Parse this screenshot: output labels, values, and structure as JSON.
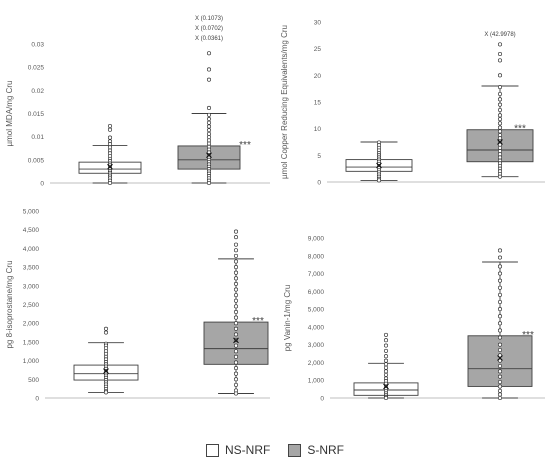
{
  "colors": {
    "ns_fill": "#ffffff",
    "s_fill": "#a6a6a6",
    "stroke": "#404040",
    "axis": "#bfbfbf"
  },
  "legend": {
    "ns_label": "NS-NRF",
    "s_label": "S-NRF"
  },
  "chart_data": [
    {
      "type": "boxplot",
      "ylabel": "µmol MDA/mg Cru",
      "ylim": [
        0,
        0.03
      ],
      "ticks": [
        "0",
        "0.005",
        "0.01",
        "0.015",
        "0.02",
        "0.025",
        "0.03"
      ],
      "tick_values": [
        0,
        0.005,
        0.01,
        0.015,
        0.02,
        0.025,
        0.03
      ],
      "significance": "***",
      "outlier_labels": [
        "X (0.1073)",
        "X (0.0702)",
        "X (0.0361)"
      ],
      "series": [
        {
          "name": "NS-NRF",
          "min": 0.0,
          "q1": 0.0021,
          "median": 0.003,
          "q3": 0.0045,
          "max": 0.0081,
          "mean": 0.0035,
          "points": [
            0.0123,
            0.0115,
            0.0098,
            0.009,
            0.0084,
            0.0077,
            0.007,
            0.0064,
            0.0058,
            0.0052,
            0.0047,
            0.0042,
            0.0038,
            0.0034,
            0.003,
            0.0026,
            0.0022,
            0.0018,
            0.0014,
            0.001,
            0.0005,
            0.0
          ]
        },
        {
          "name": "S-NRF",
          "min": 0.0,
          "q1": 0.003,
          "median": 0.005,
          "q3": 0.008,
          "max": 0.015,
          "mean": 0.006,
          "points": [
            0.028,
            0.0245,
            0.0223,
            0.0162,
            0.0147,
            0.0138,
            0.013,
            0.0122,
            0.0114,
            0.0106,
            0.0099,
            0.0092,
            0.0085,
            0.0078,
            0.0072,
            0.0066,
            0.006,
            0.0055,
            0.005,
            0.0045,
            0.004,
            0.0035,
            0.003,
            0.0025,
            0.002,
            0.0015,
            0.001,
            0.0005,
            0.0
          ]
        }
      ]
    },
    {
      "type": "boxplot",
      "ylabel": "µmol Copper Reducing Equivalents/mg Cru",
      "ylim": [
        0,
        30
      ],
      "ticks": [
        "0",
        "5",
        "10",
        "15",
        "20",
        "25",
        "30"
      ],
      "tick_values": [
        0,
        5,
        10,
        15,
        20,
        25,
        30
      ],
      "significance": "***",
      "outlier_labels": [
        "X (42.9978)"
      ],
      "series": [
        {
          "name": "NS-NRF",
          "min": 0.3,
          "q1": 2.0,
          "median": 2.8,
          "q3": 4.2,
          "max": 7.5,
          "mean": 3.1,
          "points": [
            7.4,
            6.9,
            6.4,
            5.9,
            5.4,
            5.0,
            4.6,
            4.2,
            3.8,
            3.4,
            3.0,
            2.6,
            2.2,
            1.8,
            1.4,
            1.0,
            0.6,
            0.3
          ]
        },
        {
          "name": "S-NRF",
          "min": 1.0,
          "q1": 3.8,
          "median": 6.0,
          "q3": 9.8,
          "max": 18.0,
          "mean": 7.5,
          "points": [
            25.8,
            24.0,
            22.8,
            20.0,
            17.8,
            16.5,
            15.5,
            14.5,
            13.5,
            12.5,
            11.8,
            11.0,
            10.2,
            9.5,
            8.8,
            8.2,
            7.6,
            7.0,
            6.4,
            5.8,
            5.2,
            4.6,
            4.0,
            3.5,
            3.0,
            2.5,
            2.0,
            1.5,
            1.0
          ]
        }
      ]
    },
    {
      "type": "boxplot",
      "ylabel": "pg 8-isoprostane/mg Cru",
      "ylim": [
        0,
        5000
      ],
      "ticks": [
        "0",
        "500",
        "1,000",
        "1,500",
        "2,000",
        "2,500",
        "3,000",
        "3,500",
        "4,000",
        "4,500",
        "5,000"
      ],
      "tick_values": [
        0,
        500,
        1000,
        1500,
        2000,
        2500,
        3000,
        3500,
        4000,
        4500,
        5000
      ],
      "significance": "***",
      "outlier_labels": [],
      "series": [
        {
          "name": "NS-NRF",
          "min": 150,
          "q1": 480,
          "median": 650,
          "q3": 880,
          "max": 1480,
          "mean": 720,
          "points": [
            1850,
            1750,
            1450,
            1400,
            1330,
            1250,
            1180,
            1100,
            1030,
            960,
            900,
            840,
            780,
            720,
            660,
            600,
            540,
            480,
            420,
            360,
            300,
            240,
            180,
            150
          ]
        },
        {
          "name": "S-NRF",
          "min": 120,
          "q1": 900,
          "median": 1320,
          "q3": 2030,
          "max": 3720,
          "mean": 1540,
          "points": [
            4450,
            4300,
            4100,
            3950,
            3800,
            3650,
            3500,
            3350,
            3200,
            3050,
            2900,
            2750,
            2600,
            2450,
            2300,
            2150,
            2000,
            1850,
            1700,
            1550,
            1400,
            1250,
            1100,
            950,
            800,
            650,
            500,
            350,
            200,
            120
          ]
        }
      ]
    },
    {
      "type": "boxplot",
      "ylabel": "pg Vanin-1/mg Cru",
      "ylim": [
        0,
        9000
      ],
      "ticks": [
        "0",
        "1,000",
        "2,000",
        "3,000",
        "4,000",
        "5,000",
        "6,000",
        "7,000",
        "8,000",
        "9,000"
      ],
      "tick_values": [
        0,
        1000,
        2000,
        3000,
        4000,
        5000,
        6000,
        7000,
        8000,
        9000
      ],
      "significance": "***",
      "outlier_labels": [],
      "series": [
        {
          "name": "NS-NRF",
          "min": 0,
          "q1": 150,
          "median": 450,
          "q3": 850,
          "max": 1950,
          "mean": 650,
          "points": [
            3550,
            3250,
            2950,
            2650,
            2350,
            2100,
            1900,
            1700,
            1500,
            1300,
            1100,
            950,
            800,
            650,
            500,
            380,
            260,
            150,
            60,
            0
          ]
        },
        {
          "name": "S-NRF",
          "min": 0,
          "q1": 650,
          "median": 1650,
          "q3": 3500,
          "max": 7650,
          "mean": 2250,
          "points": [
            8300,
            7900,
            7400,
            7000,
            6600,
            6200,
            5800,
            5400,
            5000,
            4600,
            4200,
            3800,
            3400,
            3000,
            2700,
            2400,
            2100,
            1800,
            1500,
            1200,
            900,
            650,
            400,
            200,
            0
          ]
        }
      ]
    }
  ]
}
